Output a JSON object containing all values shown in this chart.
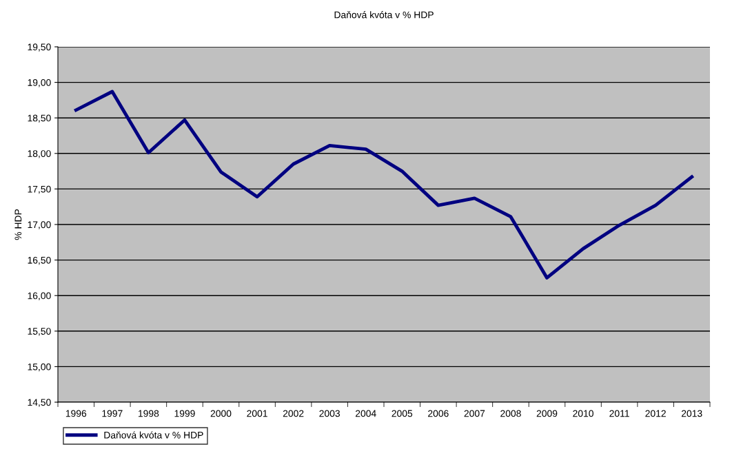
{
  "chart_data": {
    "type": "line",
    "title": "Daňová kvóta v % HDP",
    "ylabel": "% HDP",
    "categories": [
      "1996",
      "1997",
      "1998",
      "1999",
      "2000",
      "2001",
      "2002",
      "2003",
      "2004",
      "2005",
      "2006",
      "2007",
      "2008",
      "2009",
      "2010",
      "2011",
      "2012",
      "2013"
    ],
    "series": [
      {
        "name": "Daňová kvóta v % HDP",
        "color": "#000080",
        "values": [
          18.61,
          18.87,
          18.01,
          18.47,
          17.74,
          17.39,
          17.85,
          18.11,
          18.06,
          17.75,
          17.27,
          17.37,
          17.11,
          16.25,
          16.66,
          16.99,
          17.27,
          17.67
        ]
      }
    ],
    "ylim": [
      14.5,
      19.5
    ],
    "yticks": [
      {
        "value": 14.5,
        "label": "14,50"
      },
      {
        "value": 15,
        "label": "15,00"
      },
      {
        "value": 15.5,
        "label": "15,50"
      },
      {
        "value": 16,
        "label": "16,00"
      },
      {
        "value": 16.5,
        "label": "16,50"
      },
      {
        "value": 17,
        "label": "17,00"
      },
      {
        "value": 17.5,
        "label": "17,50"
      },
      {
        "value": 18,
        "label": "18,00"
      },
      {
        "value": 18.5,
        "label": "18,50"
      },
      {
        "value": 19,
        "label": "19,00"
      },
      {
        "value": 19.5,
        "label": "19,50"
      }
    ],
    "grid": "y",
    "legend": "bottom left",
    "marker": "none",
    "line_style": "solid"
  }
}
